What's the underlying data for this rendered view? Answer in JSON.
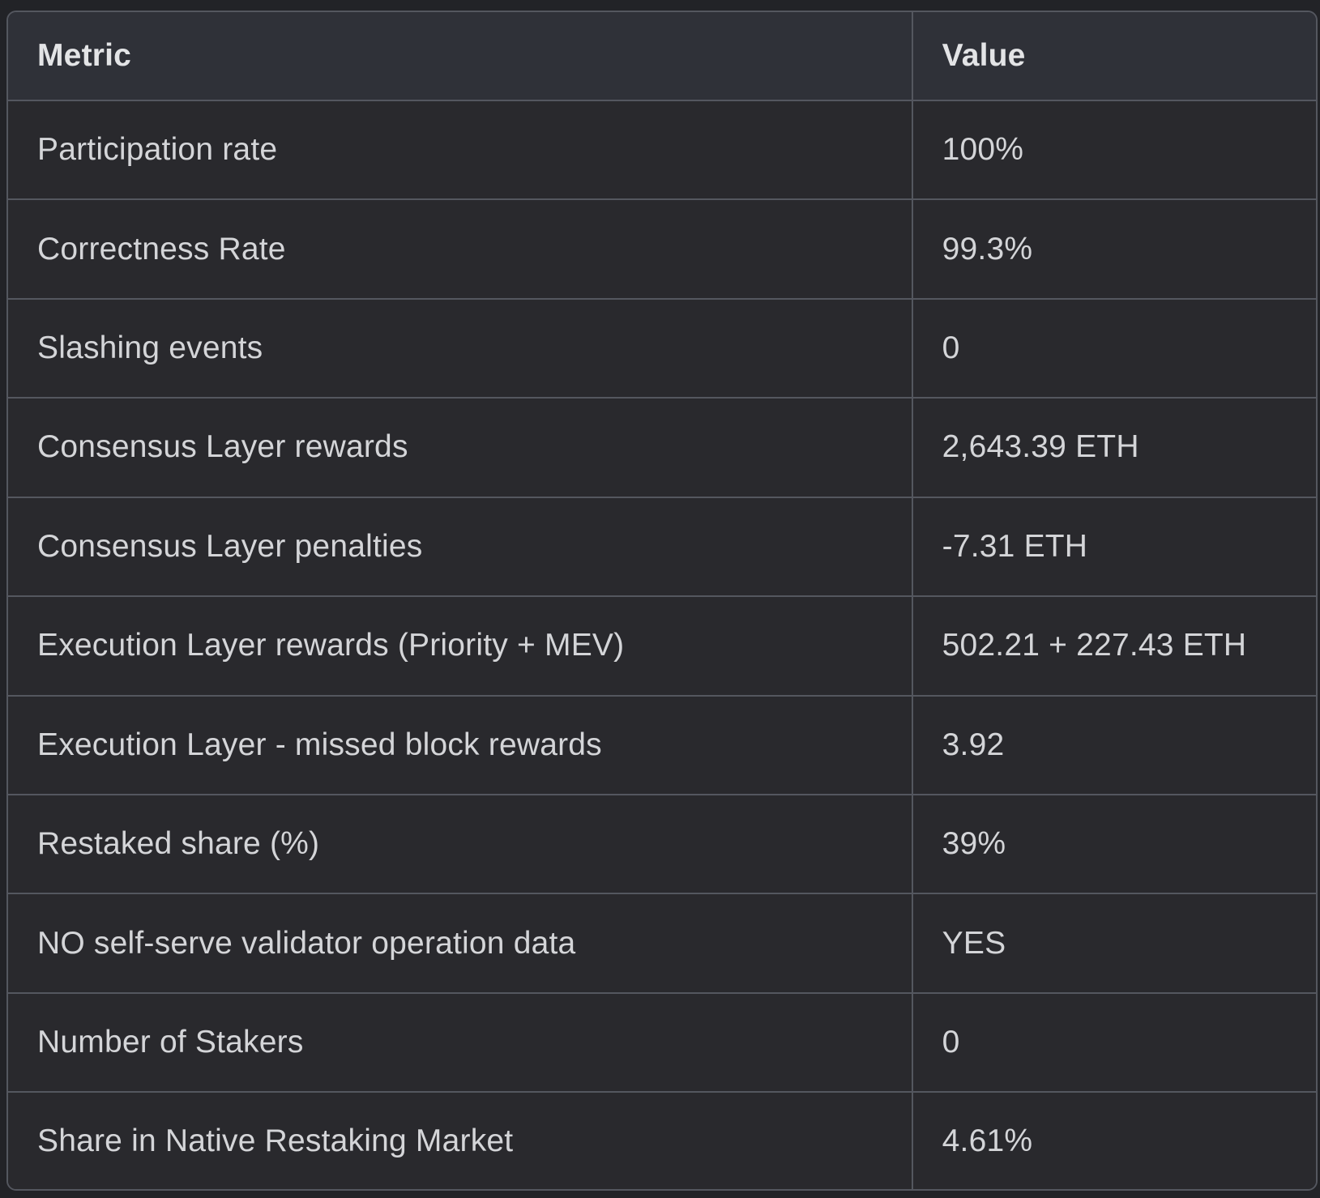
{
  "table": {
    "columns": [
      {
        "label": "Metric"
      },
      {
        "label": "Value"
      }
    ],
    "rows": [
      {
        "metric": "Participation rate",
        "value": "100%"
      },
      {
        "metric": "Correctness Rate",
        "value": "99.3%"
      },
      {
        "metric": "Slashing events",
        "value": "0"
      },
      {
        "metric": "Consensus Layer rewards",
        "value": "2,643.39 ETH"
      },
      {
        "metric": "Consensus Layer penalties",
        "value": "-7.31 ETH"
      },
      {
        "metric": "Execution Layer rewards (Priority + MEV)",
        "value": "502.21 + 227.43 ETH"
      },
      {
        "metric": "Execution Layer - missed block rewards",
        "value": "3.92"
      },
      {
        "metric": "Restaked share (%)",
        "value": "39%"
      },
      {
        "metric": "NO self-serve validator operation data",
        "value": "YES"
      },
      {
        "metric": "Number of Stakers",
        "value": "0"
      },
      {
        "metric": "Share in Native Restaking Market",
        "value": "4.61%"
      }
    ],
    "colors": {
      "page_bg": "#222327",
      "header_bg": "#2f3138",
      "row_bg": "#29292d",
      "border": "#54575f",
      "header_text": "#e3e4e6",
      "cell_text": "#d4d5d8"
    }
  }
}
